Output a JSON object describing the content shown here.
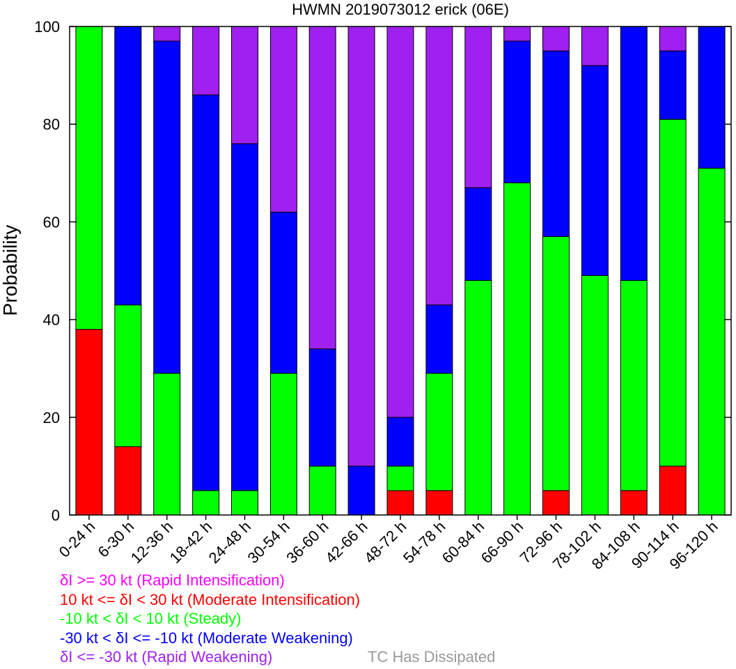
{
  "chart_data": {
    "type": "bar",
    "stacked": true,
    "title": "HWMN 2019073012 erick (06E)",
    "ylabel": "Probability",
    "xlabel": "",
    "ylim": [
      0,
      100
    ],
    "yticks": [
      0,
      20,
      40,
      60,
      80,
      100
    ],
    "grid": false,
    "categories": [
      "0-24 h",
      "6-30 h",
      "12-36 h",
      "18-42 h",
      "24-48 h",
      "30-54 h",
      "36-60 h",
      "42-66 h",
      "48-72 h",
      "54-78 h",
      "60-84 h",
      "66-90 h",
      "72-96 h",
      "78-102 h",
      "84-108 h",
      "90-114 h",
      "96-120 h"
    ],
    "series": [
      {
        "name": "10 kt <= δI < 30 kt (Moderate Intensification)",
        "color": "#ff0000",
        "values": [
          38,
          14,
          0,
          0,
          0,
          0,
          0,
          0,
          5,
          5,
          0,
          0,
          5,
          0,
          5,
          10,
          0
        ]
      },
      {
        "name": "-10 kt < δI < 10 kt (Steady)",
        "color": "#00ff00",
        "values": [
          62,
          29,
          29,
          5,
          5,
          29,
          10,
          0,
          5,
          24,
          48,
          68,
          52,
          49,
          43,
          71,
          71
        ]
      },
      {
        "name": "-30 kt < δI <= -10 kt (Moderate Weakening)",
        "color": "#0000ff",
        "values": [
          0,
          57,
          68,
          81,
          71,
          33,
          24,
          10,
          10,
          14,
          19,
          29,
          38,
          43,
          52,
          14,
          29
        ]
      },
      {
        "name": "δI <= -30 kt (Rapid Weakening)",
        "color": "#a020f0",
        "values": [
          0,
          0,
          3,
          14,
          24,
          38,
          66,
          90,
          80,
          57,
          33,
          3,
          5,
          8,
          0,
          5,
          0
        ]
      },
      {
        "name": "δI >= 30 kt (Rapid Intensification)",
        "color": "#ff00ff",
        "values": [
          0,
          0,
          0,
          0,
          0,
          0,
          0,
          0,
          0,
          0,
          0,
          0,
          0,
          0,
          0,
          0,
          0
        ]
      }
    ],
    "legend": {
      "placement": "bottom-left",
      "entries": [
        {
          "label": "δI >= 30 kt (Rapid Intensification)",
          "color": "#ff00ff"
        },
        {
          "label": "10 kt <= δI < 30 kt (Moderate Intensification)",
          "color": "#ff0000"
        },
        {
          "label": "-10 kt < δI < 10 kt (Steady)",
          "color": "#00ff00"
        },
        {
          "label": "-30 kt < δI <= -10 kt (Moderate Weakening)",
          "color": "#0000ff"
        },
        {
          "label": "δI <= -30 kt (Rapid Weakening)",
          "color": "#a020f0"
        }
      ],
      "note": {
        "label": "TC Has Dissipated",
        "color": "#999999"
      }
    }
  }
}
